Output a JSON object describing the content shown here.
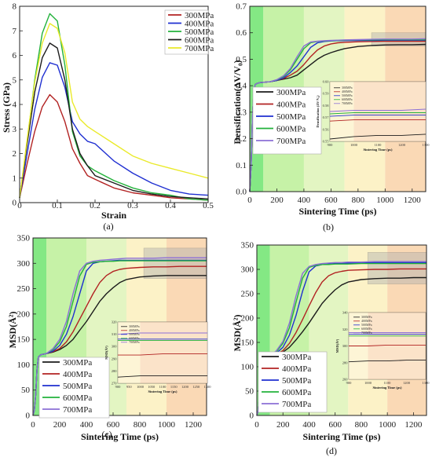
{
  "series_colors": [
    "#b22222",
    "#1c1c1c",
    "#1f2fd1",
    "#23b23b",
    "#eaea2a",
    "#8c6fd6"
  ],
  "phase_colors": [
    "#5be05b",
    "#b3ee8a",
    "#d9f2ae",
    "#fbedb4",
    "#f8cc9c"
  ],
  "chart_data": [
    {
      "id": "a",
      "type": "line",
      "panel_label": "(a)",
      "xlabel": "Strain",
      "ylabel": "Stress (GPa)",
      "xlim": [
        0,
        0.5
      ],
      "ylim": [
        0,
        8
      ],
      "xticks": [
        "0",
        "0.1",
        "0.2",
        "0.3",
        "0.4",
        "0.5"
      ],
      "yticks": [
        "0",
        "1",
        "2",
        "3",
        "4",
        "5",
        "6",
        "7",
        "8"
      ],
      "grid": false,
      "legend": [
        "300MPa",
        "400MPa",
        "500MPa",
        "600MPa",
        "700MPa"
      ],
      "legend_position": "top-right",
      "x": [
        0,
        0.02,
        0.04,
        0.06,
        0.08,
        0.1,
        0.12,
        0.14,
        0.16,
        0.18,
        0.2,
        0.25,
        0.3,
        0.35,
        0.4,
        0.45,
        0.5
      ],
      "series": [
        {
          "name": "300MPa",
          "color": "#b22222",
          "values": [
            0.2,
            1.6,
            2.9,
            3.9,
            4.4,
            4.1,
            3.3,
            2.2,
            1.6,
            1.1,
            0.95,
            0.6,
            0.4,
            0.3,
            0.2,
            0.15,
            0.1
          ]
        },
        {
          "name": "400MPa",
          "color": "#1f2fd1",
          "values": [
            0.2,
            2.0,
            3.8,
            5.1,
            5.7,
            5.6,
            4.7,
            3.3,
            2.8,
            2.5,
            2.4,
            1.7,
            1.2,
            0.8,
            0.5,
            0.35,
            0.3
          ]
        },
        {
          "name": "500MPa",
          "color": "#23b23b",
          "values": [
            0.2,
            2.5,
            5.0,
            6.9,
            7.7,
            7.4,
            5.6,
            2.9,
            1.9,
            1.5,
            1.3,
            0.9,
            0.6,
            0.4,
            0.3,
            0.15,
            0.1
          ]
        },
        {
          "name": "600MPa",
          "color": "#1c1c1c",
          "values": [
            0.2,
            2.4,
            4.5,
            5.9,
            6.5,
            6.3,
            5.0,
            3.0,
            2.0,
            1.5,
            1.1,
            0.8,
            0.5,
            0.35,
            0.25,
            0.2,
            0.15
          ]
        },
        {
          "name": "700MPa",
          "color": "#eaea2a",
          "values": [
            0.2,
            2.6,
            4.9,
            6.5,
            7.3,
            7.1,
            6.1,
            4.1,
            3.4,
            3.1,
            2.9,
            2.4,
            1.9,
            1.6,
            1.4,
            1.2,
            1.0
          ]
        }
      ]
    },
    {
      "id": "b",
      "type": "line",
      "panel_label": "(b)",
      "xlabel": "Sintering Time (ps)",
      "ylabel": "Densification(ΔV/V₀)",
      "xlim": [
        0,
        1300
      ],
      "ylim": [
        0,
        0.7
      ],
      "xticks": [
        "0",
        "200",
        "400",
        "600",
        "800",
        "1000",
        "1200"
      ],
      "yticks": [
        "0.0",
        "0.1",
        "0.2",
        "0.3",
        "0.4",
        "0.5",
        "0.6",
        "0.7"
      ],
      "phase_bounds": [
        0,
        100,
        400,
        700,
        1000,
        1300
      ],
      "zoom_box": {
        "x": [
          900,
          1300
        ],
        "y": [
          0.55,
          0.6
        ]
      },
      "legend": [
        "300MPa",
        "400MPa",
        "500MPa",
        "600MPa",
        "700MPa"
      ],
      "legend_position": "center-left",
      "x": [
        0,
        10,
        20,
        30,
        40,
        60,
        80,
        100,
        150,
        200,
        250,
        300,
        350,
        400,
        450,
        500,
        550,
        600,
        650,
        700,
        800,
        900,
        1000,
        1100,
        1200,
        1300
      ],
      "series": [
        {
          "name": "300MPa",
          "color": "#1c1c1c",
          "values": [
            0,
            0.1,
            0.28,
            0.38,
            0.405,
            0.41,
            0.412,
            0.413,
            0.415,
            0.42,
            0.425,
            0.43,
            0.44,
            0.46,
            0.48,
            0.5,
            0.515,
            0.525,
            0.533,
            0.54,
            0.548,
            0.552,
            0.554,
            0.555,
            0.555,
            0.556
          ]
        },
        {
          "name": "400MPa",
          "color": "#b22222",
          "values": [
            0,
            0.1,
            0.28,
            0.38,
            0.405,
            0.41,
            0.412,
            0.413,
            0.415,
            0.42,
            0.428,
            0.44,
            0.455,
            0.48,
            0.51,
            0.535,
            0.55,
            0.558,
            0.562,
            0.564,
            0.566,
            0.567,
            0.568,
            0.568,
            0.568,
            0.568
          ]
        },
        {
          "name": "500MPa",
          "color": "#1f2fd1",
          "values": [
            0,
            0.1,
            0.28,
            0.38,
            0.405,
            0.41,
            0.412,
            0.413,
            0.415,
            0.42,
            0.43,
            0.45,
            0.475,
            0.51,
            0.545,
            0.562,
            0.567,
            0.569,
            0.57,
            0.57,
            0.571,
            0.571,
            0.572,
            0.572,
            0.572,
            0.572
          ]
        },
        {
          "name": "600MPa",
          "color": "#23b23b",
          "values": [
            0,
            0.1,
            0.28,
            0.38,
            0.405,
            0.41,
            0.412,
            0.413,
            0.415,
            0.422,
            0.435,
            0.46,
            0.5,
            0.54,
            0.562,
            0.567,
            0.569,
            0.57,
            0.571,
            0.572,
            0.573,
            0.573,
            0.574,
            0.574,
            0.574,
            0.574
          ]
        },
        {
          "name": "700MPa",
          "color": "#8c6fd6",
          "values": [
            0,
            0.1,
            0.28,
            0.38,
            0.405,
            0.41,
            0.412,
            0.413,
            0.415,
            0.423,
            0.438,
            0.465,
            0.51,
            0.55,
            0.565,
            0.568,
            0.57,
            0.571,
            0.572,
            0.573,
            0.574,
            0.575,
            0.576,
            0.576,
            0.576,
            0.577
          ]
        }
      ],
      "inset": {
        "xlabel": "Sintering Time (ps)",
        "ylabel": "Densification (ΔV/V₀)",
        "xlim": [
          900,
          1300
        ],
        "ylim": [
          0.55,
          0.6
        ],
        "xticks": [
          "900",
          "1000",
          "1100",
          "1200",
          "1300"
        ],
        "yticks": [
          "0.55",
          "0.56",
          "0.57",
          "0.58",
          "0.59",
          "0.60"
        ],
        "legend": [
          "300MPa",
          "400MPa",
          "500MPa",
          "600MPa",
          "700MPa"
        ]
      }
    },
    {
      "id": "c",
      "type": "line",
      "panel_label": "(c)",
      "xlabel": "Sintering Time (ps)",
      "ylabel": "MSD(Å²)",
      "xlim": [
        0,
        1300
      ],
      "ylim": [
        0,
        350
      ],
      "xticks": [
        "0",
        "200",
        "400",
        "600",
        "800",
        "1000",
        "1200"
      ],
      "yticks": [
        "0",
        "50",
        "100",
        "150",
        "200",
        "250",
        "300",
        "350"
      ],
      "phase_bounds": [
        0,
        100,
        400,
        700,
        1000,
        1300
      ],
      "zoom_box": {
        "x": [
          830,
          1300
        ],
        "y": [
          270,
          330
        ]
      },
      "legend": [
        "300MPa",
        "400MPa",
        "500MPa",
        "600MPa",
        "700MPa"
      ],
      "legend_position": "bottom-left",
      "x": [
        0,
        10,
        20,
        30,
        40,
        60,
        80,
        100,
        150,
        200,
        250,
        300,
        350,
        400,
        450,
        500,
        550,
        600,
        650,
        700,
        800,
        900,
        1000,
        1100,
        1200,
        1300
      ],
      "series": [
        {
          "name": "300MPa",
          "color": "#1c1c1c",
          "values": [
            0,
            10,
            40,
            90,
            115,
            120,
            121,
            122,
            125,
            130,
            138,
            150,
            168,
            185,
            205,
            225,
            240,
            252,
            262,
            268,
            273,
            275,
            276,
            276,
            276,
            276
          ]
        },
        {
          "name": "400MPa",
          "color": "#b22222",
          "values": [
            0,
            10,
            40,
            90,
            115,
            120,
            121,
            122,
            126,
            132,
            145,
            165,
            190,
            215,
            240,
            262,
            276,
            284,
            288,
            290,
            292,
            293,
            293,
            294,
            294,
            294
          ]
        },
        {
          "name": "500MPa",
          "color": "#1f2fd1",
          "values": [
            0,
            10,
            40,
            90,
            115,
            120,
            121,
            122,
            127,
            138,
            160,
            195,
            240,
            285,
            300,
            303,
            304,
            305,
            306,
            306,
            306,
            306,
            306,
            306,
            306,
            306
          ]
        },
        {
          "name": "600MPa",
          "color": "#23b23b",
          "values": [
            0,
            10,
            40,
            90,
            115,
            120,
            121,
            122,
            130,
            145,
            175,
            225,
            275,
            298,
            302,
            303,
            304,
            304,
            305,
            305,
            305,
            305,
            305,
            305,
            305,
            305
          ]
        },
        {
          "name": "700MPa",
          "color": "#8c6fd6",
          "values": [
            0,
            10,
            40,
            90,
            115,
            120,
            121,
            122,
            132,
            150,
            185,
            240,
            285,
            300,
            304,
            306,
            307,
            308,
            309,
            310,
            310,
            310,
            311,
            311,
            311,
            311
          ]
        }
      ],
      "inset": {
        "xlabel": "Sintering Time (ps)",
        "ylabel": "MSD(Å²)",
        "xlim": [
          900,
          1300
        ],
        "ylim": [
          270,
          320
        ],
        "xticks": [
          "900",
          "950",
          "1000",
          "1050",
          "1100",
          "1150",
          "1200",
          "1250",
          "1300"
        ],
        "yticks": [
          "270",
          "280",
          "290",
          "300",
          "310",
          "320"
        ],
        "legend": [
          "300MPa",
          "400MPa",
          "500MPa",
          "600MPa",
          "700MPa"
        ]
      }
    },
    {
      "id": "d",
      "type": "line",
      "panel_label": "(d)",
      "xlabel": "Sintering Time (ps)",
      "ylabel": "MSD(Å²)",
      "xlim": [
        0,
        1300
      ],
      "ylim": [
        0,
        350
      ],
      "xticks": [
        "0",
        "200",
        "400",
        "600",
        "800",
        "1000",
        "1200"
      ],
      "yticks": [
        "0",
        "50",
        "100",
        "150",
        "200",
        "250",
        "300",
        "350"
      ],
      "phase_bounds": [
        0,
        100,
        400,
        700,
        1000,
        1300
      ],
      "zoom_box": {
        "x": [
          850,
          1300
        ],
        "y": [
          270,
          335
        ]
      },
      "legend": [
        "300MPa",
        "400MPa",
        "500MPa",
        "600MPa",
        "700MPa"
      ],
      "legend_position": "bottom-left",
      "x": [
        0,
        10,
        20,
        30,
        40,
        60,
        80,
        100,
        150,
        200,
        250,
        300,
        350,
        400,
        450,
        500,
        550,
        600,
        650,
        700,
        800,
        900,
        1000,
        1100,
        1200,
        1300
      ],
      "series": [
        {
          "name": "300MPa",
          "color": "#1c1c1c",
          "values": [
            0,
            10,
            40,
            90,
            115,
            120,
            121,
            122,
            125,
            130,
            140,
            155,
            172,
            190,
            210,
            230,
            245,
            258,
            268,
            274,
            279,
            281,
            282,
            282,
            283,
            283
          ]
        },
        {
          "name": "400MPa",
          "color": "#b22222",
          "values": [
            0,
            10,
            40,
            90,
            115,
            120,
            121,
            122,
            126,
            133,
            148,
            170,
            197,
            225,
            252,
            274,
            287,
            293,
            296,
            298,
            299,
            300,
            300,
            301,
            301,
            301
          ]
        },
        {
          "name": "500MPa",
          "color": "#1f2fd1",
          "values": [
            0,
            10,
            40,
            90,
            115,
            120,
            121,
            122,
            128,
            140,
            165,
            205,
            255,
            295,
            307,
            310,
            311,
            312,
            313,
            313,
            313,
            314,
            314,
            314,
            314,
            314
          ]
        },
        {
          "name": "600MPa",
          "color": "#23b23b",
          "values": [
            0,
            10,
            40,
            90,
            115,
            120,
            121,
            122,
            131,
            148,
            180,
            232,
            282,
            304,
            308,
            310,
            310,
            311,
            311,
            311,
            312,
            312,
            312,
            312,
            312,
            312
          ]
        },
        {
          "name": "700MPa",
          "color": "#8c6fd6",
          "values": [
            0,
            10,
            40,
            90,
            115,
            120,
            121,
            122,
            133,
            152,
            190,
            245,
            292,
            306,
            310,
            312,
            313,
            314,
            314,
            315,
            315,
            316,
            316,
            316,
            316,
            316
          ]
        }
      ],
      "inset": {
        "xlabel": "Sintering Time (ps)",
        "ylabel": "MSD(Å²)",
        "xlim": [
          900,
          1300
        ],
        "ylim": [
          260,
          340
        ],
        "xticks": [
          "900",
          "1000",
          "1100",
          "1200",
          "1300"
        ],
        "yticks": [
          "260",
          "280",
          "300",
          "320",
          "340"
        ],
        "legend": [
          "300MPa",
          "400MPa",
          "500MPa",
          "600MPa",
          "700MPa"
        ]
      }
    }
  ]
}
